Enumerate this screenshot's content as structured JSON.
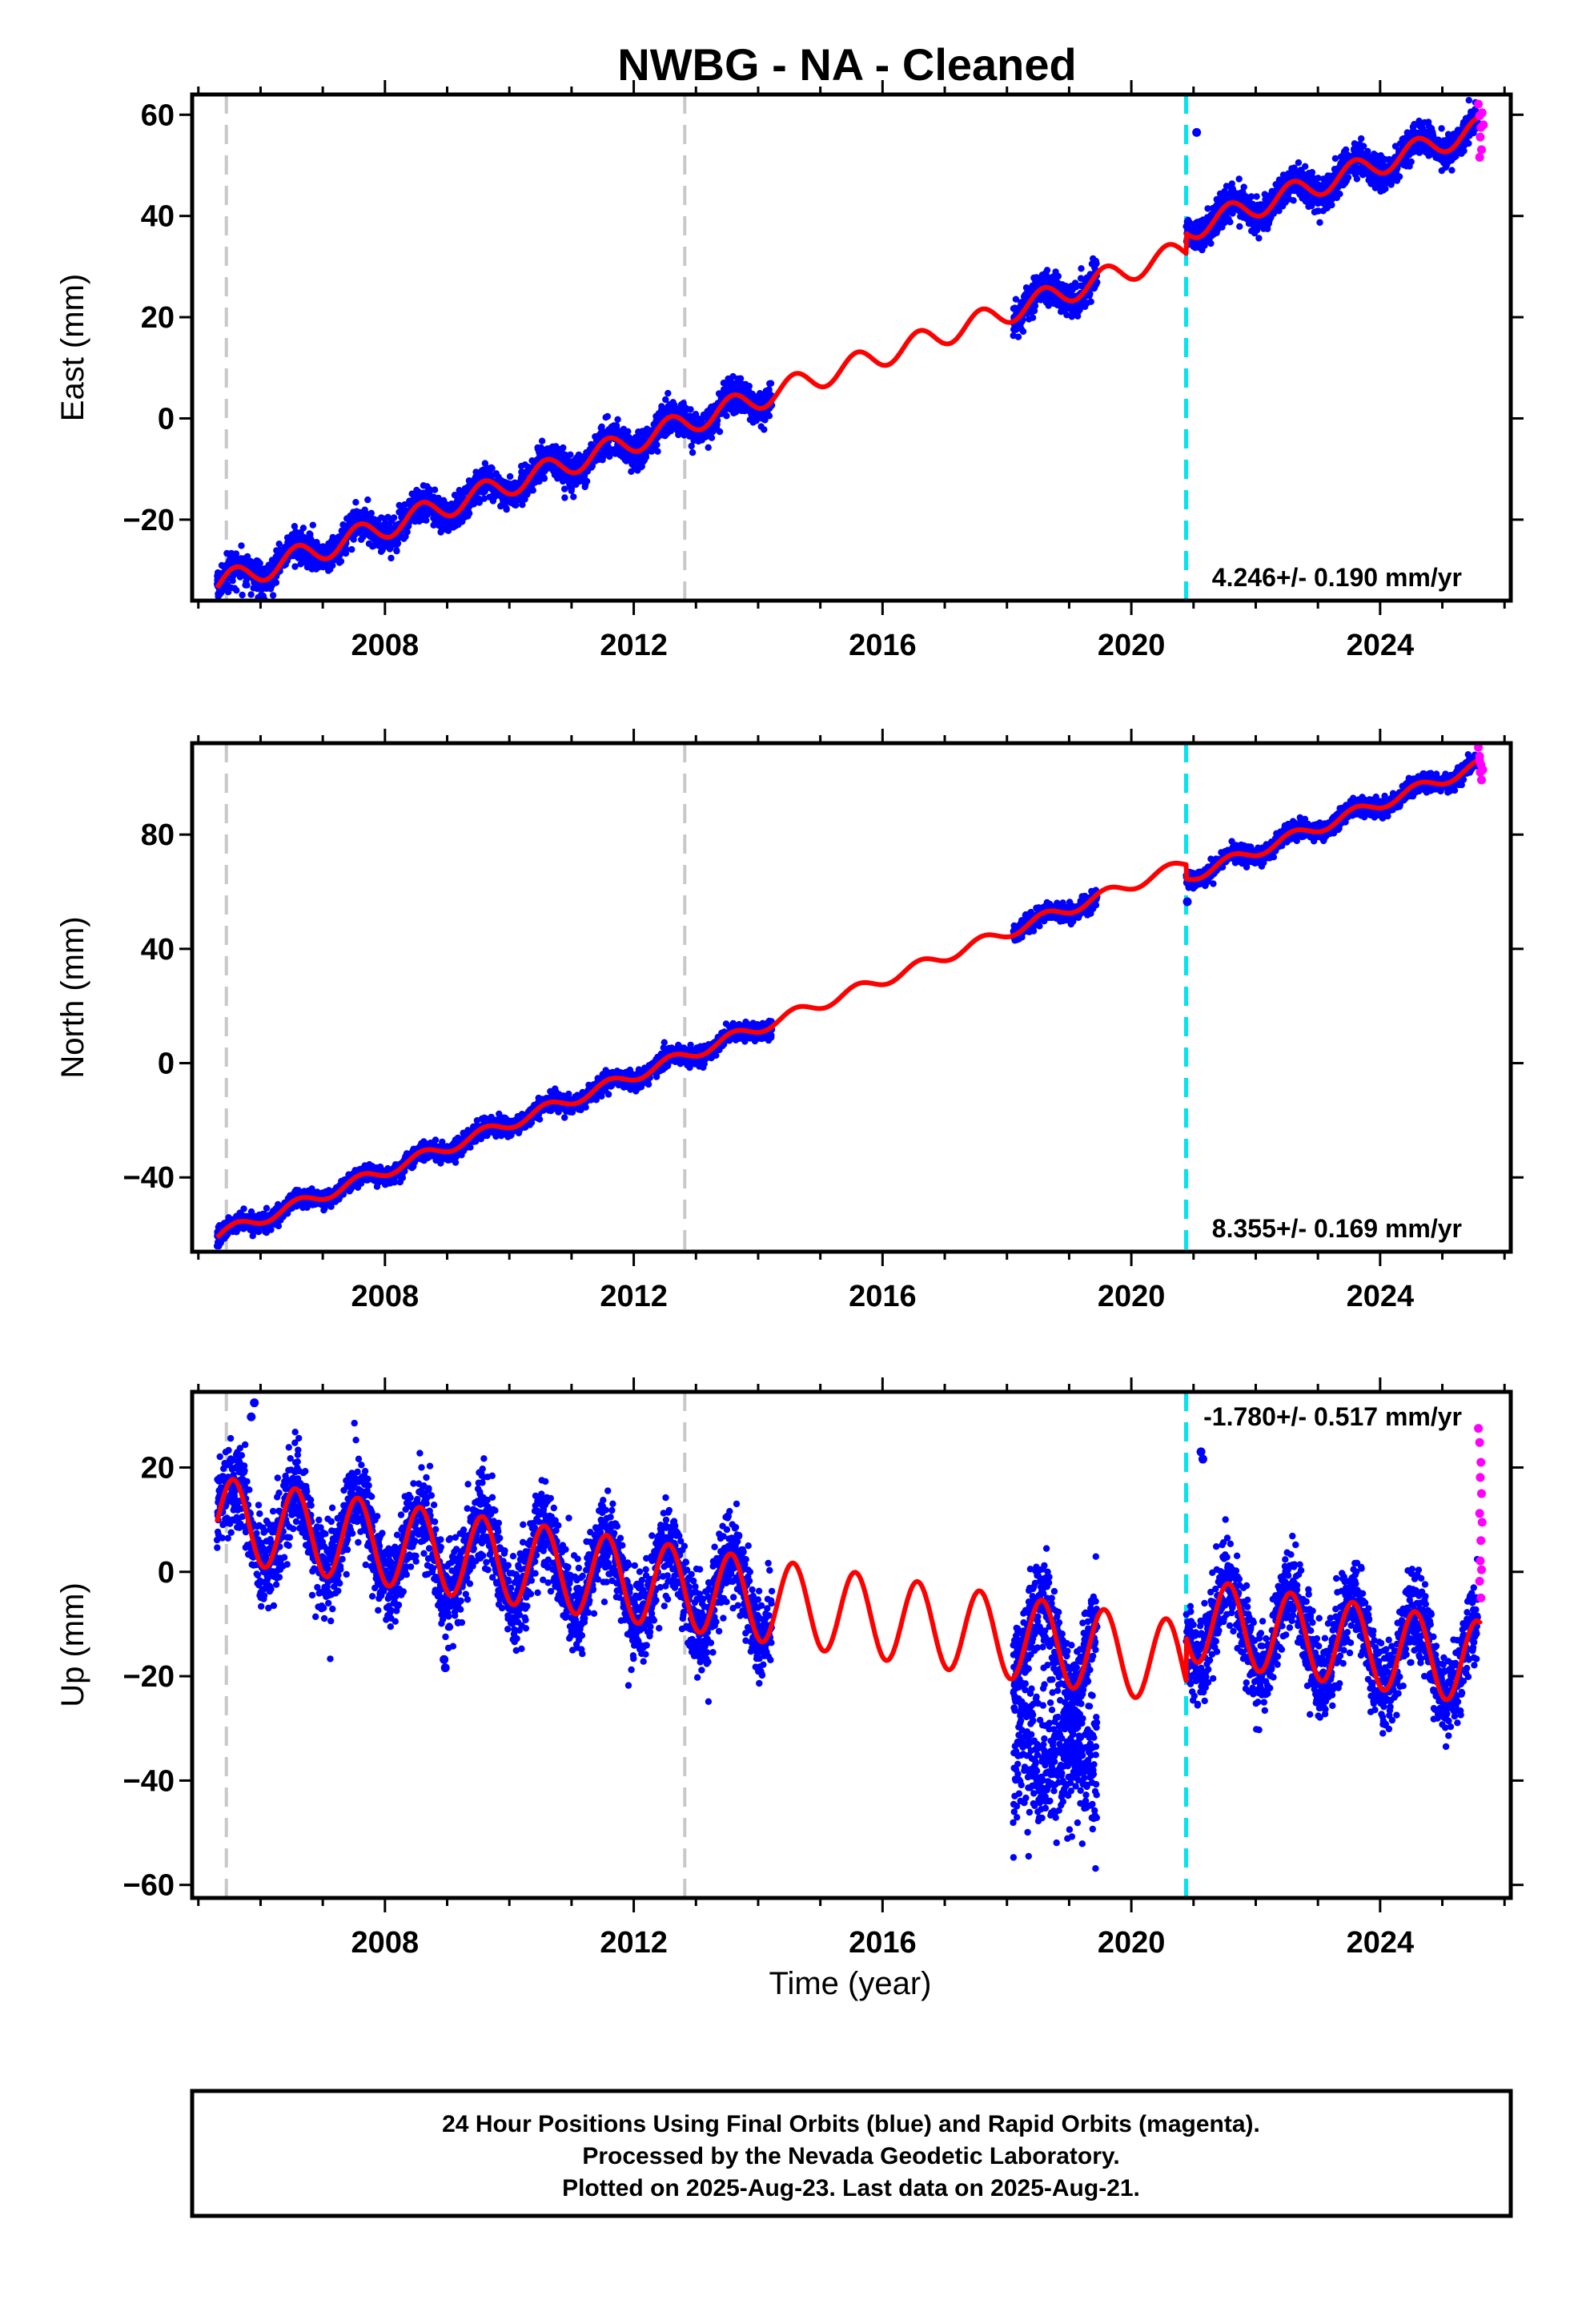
{
  "chart_data": {
    "type": "scatter",
    "title": "NWBG  - NA - Cleaned",
    "xlabel": "Time (year)",
    "xlim": [
      2004.9,
      2026.1
    ],
    "xticks": [
      2008,
      2012,
      2016,
      2020,
      2024
    ],
    "events": {
      "gray_dashed": [
        2005.45,
        2012.82
      ],
      "cyan_dashed": [
        2020.88
      ]
    },
    "data_gaps": [
      [
        2014.22,
        2018.1
      ],
      [
        2019.45,
        2020.88
      ]
    ],
    "colors": {
      "final_orbits": "#0000ff",
      "rapid_orbits": "#ff00ff",
      "model": "#ff0000",
      "gray_event": "#c8c8c8",
      "cyan_event": "#00e5ee"
    },
    "panels": [
      {
        "ylabel": "East (mm)",
        "ylim": [
          -36,
          64
        ],
        "yticks": [
          -20,
          0,
          20,
          40,
          60
        ],
        "velocity_label": "4.246+/- 0.190 mm/yr",
        "velocity_label_position": "bottom-right",
        "model": {
          "t0": 2005.4,
          "offset": -32.5,
          "rate": 4.246,
          "amplitude": 2.3,
          "phase": 0.4,
          "steps": [
            [
              2020.88,
              4.0
            ]
          ]
        },
        "scatter_sigma": 1.6,
        "anomaly_points": [
          [
            2021.05,
            56.5
          ]
        ],
        "rapid_points": [
          [
            2025.58,
            62.1
          ],
          [
            2025.6,
            59.8
          ],
          [
            2025.62,
            57.5
          ],
          [
            2025.61,
            55.6
          ],
          [
            2025.63,
            53.1
          ],
          [
            2025.6,
            51.6
          ],
          [
            2025.64,
            60.4
          ],
          [
            2025.66,
            58.0
          ]
        ]
      },
      {
        "ylabel": "North (mm)",
        "ylim": [
          -66,
          112
        ],
        "yticks": [
          -40,
          0,
          40,
          80
        ],
        "velocity_label": "8.355+/- 0.169 mm/yr",
        "velocity_label_position": "bottom-right",
        "model": {
          "t0": 2005.4,
          "offset": -59.5,
          "rate": 8.355,
          "amplitude": 2.0,
          "phase": 0.3,
          "steps": [
            [
              2020.88,
              -5.0
            ]
          ]
        },
        "scatter_sigma": 1.5,
        "anomaly_points": [
          [
            2020.9,
            56.5
          ]
        ],
        "rapid_points": [
          [
            2025.58,
            110.5
          ],
          [
            2025.6,
            107.4
          ],
          [
            2025.62,
            104.5
          ],
          [
            2025.61,
            101.8
          ],
          [
            2025.63,
            99.1
          ],
          [
            2025.6,
            105.9
          ],
          [
            2025.65,
            102.7
          ]
        ]
      },
      {
        "ylabel": "Up (mm)",
        "ylim": [
          -62.5,
          34.5
        ],
        "yticks": [
          -60,
          -40,
          -20,
          0,
          20
        ],
        "velocity_label": "-1.780+/- 0.517 mm/yr",
        "velocity_label_position": "top-right",
        "model": {
          "t0": 2005.4,
          "offset": 10.0,
          "rate": -1.78,
          "amplitude": 8.0,
          "phase": 0.55,
          "steps": [
            [
              2020.88,
              8.5
            ]
          ]
        },
        "scatter_sigma": 4.2,
        "anomaly_points": [
          [
            2005.9,
            32.4
          ],
          [
            2005.85,
            29.7
          ],
          [
            2008.95,
            -16.8
          ],
          [
            2008.97,
            -18.4
          ],
          [
            2021.12,
            23.0
          ],
          [
            2021.15,
            21.6
          ]
        ],
        "anomaly_cluster": {
          "t_from": 2018.1,
          "t_to": 2019.45,
          "center": -35.0,
          "spread": 13.0,
          "min": -61.0,
          "max": -14.0
        },
        "rapid_points": [
          [
            2025.58,
            27.5
          ],
          [
            2025.6,
            24.8
          ],
          [
            2025.62,
            21.0
          ],
          [
            2025.61,
            18.1
          ],
          [
            2025.63,
            15.0
          ],
          [
            2025.6,
            11.2
          ],
          [
            2025.64,
            9.5
          ],
          [
            2025.62,
            6.0
          ],
          [
            2025.61,
            2.1
          ],
          [
            2025.63,
            0.4
          ],
          [
            2025.6,
            -1.8
          ],
          [
            2025.62,
            -5.0
          ]
        ]
      }
    ]
  },
  "footer": {
    "line1": "24 Hour Positions Using Final Orbits (blue) and Rapid Orbits (magenta).",
    "line2": "Processed by the Nevada Geodetic Laboratory.",
    "line3": "Plotted on 2025-Aug-23. Last data on 2025-Aug-21."
  }
}
